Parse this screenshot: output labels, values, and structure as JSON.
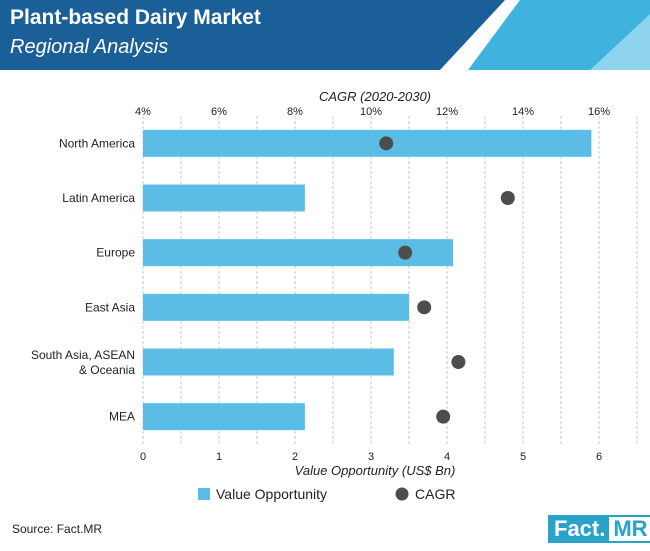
{
  "header": {
    "title": "Plant-based Dairy Market",
    "subtitle": "Regional Analysis"
  },
  "chart_data": {
    "type": "bar",
    "orientation": "horizontal",
    "categories": [
      "North America",
      "Latin America",
      "Europe",
      "East Asia",
      "South Asia, ASEAN & Oceania",
      "MEA"
    ],
    "series": [
      {
        "name": "Value Opportunity",
        "type": "bar",
        "axis": "bottom",
        "values": [
          5.9,
          2.13,
          4.08,
          3.5,
          3.3,
          2.13
        ],
        "color": "#5bbde6"
      },
      {
        "name": "CAGR",
        "type": "scatter",
        "axis": "top",
        "values": [
          10.4,
          13.6,
          10.9,
          11.4,
          12.3,
          11.9
        ],
        "color": "#4d4d4d"
      }
    ],
    "xlabel": "Value Opportunity (US$ Bn)",
    "x2label": "CAGR (2020-2030)",
    "xlim": [
      0,
      6.5
    ],
    "xticks": [
      "0",
      "1",
      "2",
      "3",
      "4",
      "5",
      "6"
    ],
    "x2lim": [
      4,
      17
    ],
    "x2ticks": [
      "4%",
      "6%",
      "8%",
      "10%",
      "12%",
      "14%",
      "16%"
    ],
    "grid": "vertical",
    "legend": "bottom"
  },
  "source": "Source: Fact.MR",
  "logo": {
    "fact": "Fact.",
    "mr": "MR"
  }
}
